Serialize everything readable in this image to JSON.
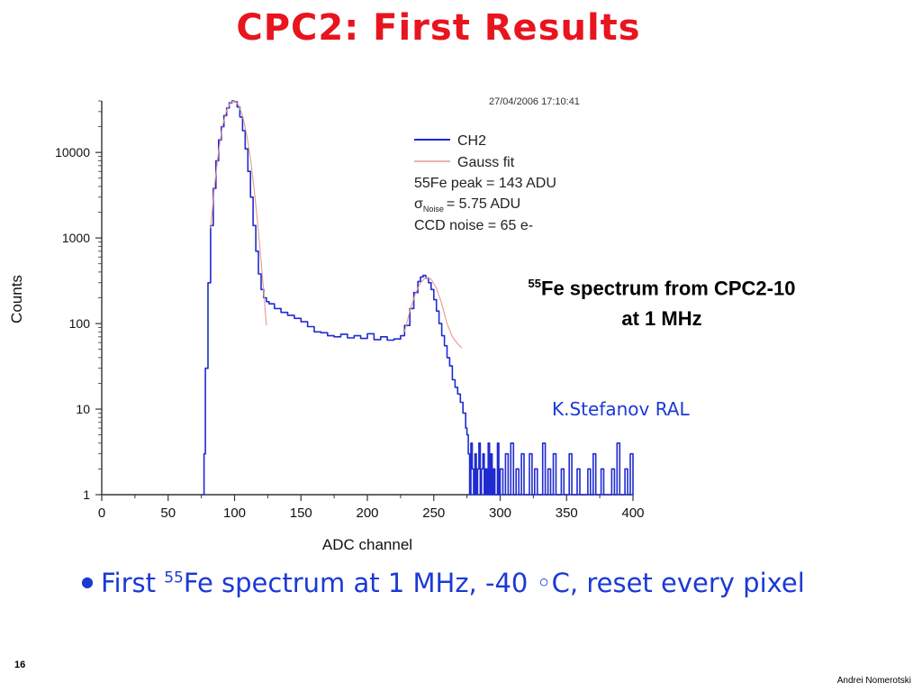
{
  "slide": {
    "title": "CPC2: First Results",
    "caption_sup": "55",
    "caption_line1": "Fe spectrum from CPC2-10",
    "caption_line2": "at 1 MHz",
    "credit": "K.Stefanov RAL",
    "bullet_prefix": "First ",
    "bullet_sup": "55",
    "bullet_text": "Fe spectrum at 1 MHz, -40 ◦C, reset every pixel",
    "page_number": "16",
    "author": "Andrei Nomerotski"
  },
  "chart_data": {
    "type": "line",
    "timestamp": "27/04/2006 17:10:41",
    "xlabel": "ADC channel",
    "ylabel": "Counts",
    "xlim": [
      0,
      400
    ],
    "ylim": [
      1,
      40000
    ],
    "yscale": "log",
    "x_ticks": [
      0,
      50,
      100,
      150,
      200,
      250,
      300,
      350,
      400
    ],
    "y_ticks": [
      {
        "value": 1,
        "label": "1"
      },
      {
        "value": 10,
        "label": "10"
      },
      {
        "value": 100,
        "label": "100"
      },
      {
        "value": 1000,
        "label": "1000"
      },
      {
        "value": 10000,
        "label": "10000"
      }
    ],
    "legend_position": "top-right",
    "legend": [
      "CH2",
      "Gauss fit"
    ],
    "annotations": [
      "55Fe peak = 143 ADU",
      "= 5.75 ADU",
      "CCD noise = 65 e-"
    ],
    "sigma_symbol": "σ",
    "sigma_subscript": "Noise",
    "series": [
      {
        "name": "CH2",
        "color": "#1f2bd1",
        "x": [
          76,
          77,
          78,
          80,
          82,
          84,
          86,
          88,
          90,
          92,
          94,
          96,
          98,
          100,
          102,
          104,
          106,
          108,
          110,
          112,
          114,
          116,
          118,
          120,
          122,
          124,
          126,
          130,
          135,
          140,
          145,
          150,
          155,
          160,
          165,
          170,
          175,
          180,
          185,
          190,
          195,
          200,
          205,
          210,
          215,
          220,
          225,
          228,
          232,
          235,
          238,
          240,
          242,
          244,
          246,
          248,
          250,
          252,
          254,
          256,
          258,
          260,
          262,
          264,
          266,
          268,
          270,
          272,
          274,
          275,
          276,
          277,
          278,
          279,
          280,
          281,
          282,
          283,
          284,
          285,
          286,
          287,
          288,
          289,
          290,
          291,
          292,
          293,
          294,
          295,
          296,
          297,
          298,
          299,
          300,
          302,
          304,
          306,
          308,
          310,
          312,
          314,
          316,
          318,
          320,
          322,
          324,
          326,
          328,
          330,
          332,
          334,
          336,
          338,
          340,
          342,
          344,
          346,
          348,
          350,
          352,
          354,
          356,
          358,
          360,
          362,
          364,
          366,
          368,
          370,
          372,
          374,
          376,
          378,
          380,
          382,
          384,
          386,
          388,
          390,
          392,
          394,
          396,
          398,
          400
        ],
        "y": [
          1,
          3,
          30,
          300,
          1400,
          3800,
          8000,
          14000,
          20000,
          27000,
          33000,
          38000,
          40000,
          39000,
          34000,
          26000,
          18000,
          11000,
          6000,
          3000,
          1400,
          700,
          380,
          250,
          200,
          180,
          170,
          150,
          135,
          125,
          115,
          105,
          92,
          80,
          78,
          72,
          70,
          75,
          68,
          72,
          67,
          76,
          65,
          70,
          64,
          66,
          72,
          95,
          150,
          230,
          310,
          350,
          365,
          340,
          300,
          250,
          190,
          140,
          100,
          72,
          55,
          40,
          32,
          22,
          18,
          15,
          12,
          9,
          6,
          5,
          3,
          1,
          4,
          2,
          1,
          3,
          1,
          2,
          4,
          1,
          2,
          3,
          1,
          2,
          1,
          4,
          1,
          3,
          1,
          2,
          1,
          1,
          4,
          1,
          2,
          1,
          3,
          1,
          4,
          1,
          2,
          1,
          3,
          1,
          1,
          3,
          1,
          2,
          1,
          1,
          4,
          1,
          2,
          1,
          3,
          1,
          1,
          2,
          1,
          1,
          3,
          1,
          1,
          2,
          1,
          1,
          1,
          2,
          1,
          3,
          1,
          1,
          2,
          1,
          1,
          1,
          2,
          1,
          4,
          1,
          1,
          2,
          1,
          3,
          1
        ]
      },
      {
        "name": "Gauss fit",
        "color": "#e79a8f",
        "x": [
          82,
          85,
          88,
          91,
          94,
          97,
          100,
          103,
          106,
          109,
          112,
          115,
          118,
          121,
          124,
          228,
          232,
          236,
          240,
          244,
          248,
          252,
          256,
          260,
          264,
          268,
          271
        ],
        "y": [
          1300,
          4200,
          10500,
          20500,
          31000,
          38500,
          40000,
          36000,
          27000,
          16500,
          8500,
          3500,
          1200,
          350,
          95,
          80,
          140,
          220,
          300,
          345,
          330,
          260,
          170,
          100,
          70,
          58,
          52
        ]
      }
    ]
  }
}
